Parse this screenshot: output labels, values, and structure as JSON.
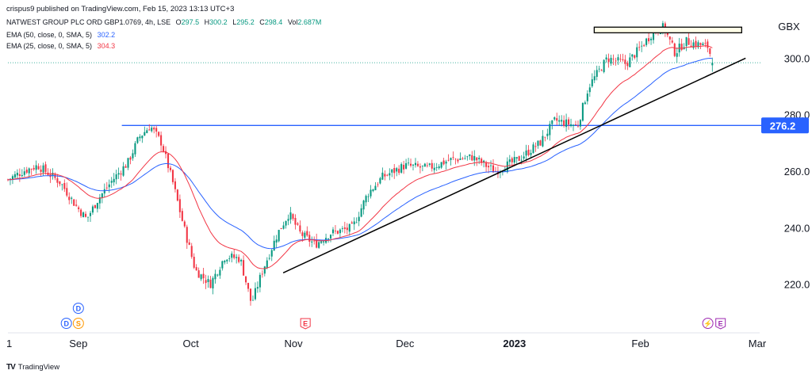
{
  "header": {
    "published": "crispus9 published on TradingView.com, Feb 15, 2023 13:13 UTC+3",
    "symbol": "NATWEST GROUP PLC ORD GBP1.0769, 4h, LSE",
    "ohlc": {
      "o_label": "O",
      "o": "297.5",
      "h_label": "H",
      "h": "300.2",
      "l_label": "L",
      "l": "295.2",
      "c_label": "C",
      "c": "298.4",
      "vol_label": "Vol",
      "vol": "2.687M"
    },
    "ema50_label": "EMA (50, close, 0, SMA, 5)",
    "ema50_value": "302.2",
    "ema25_label": "EMA (25, close, 0, SMA, 5)",
    "ema25_value": "304.3"
  },
  "footer": {
    "brand": "TradingView",
    "logo": "TV"
  },
  "colors": {
    "up": "#089981",
    "down": "#f23645",
    "ema50": "#2962ff",
    "ema25": "#f23645",
    "hline": "#2962ff",
    "trend": "#000000",
    "dotted": "#089981"
  },
  "chart_data": {
    "type": "candlestick",
    "currency": "GBX",
    "ylim": [
      205,
      315
    ],
    "y_ticks": [
      "220.0",
      "240.0",
      "260.0",
      "280.0",
      "300.0"
    ],
    "y_tick_values": [
      220,
      240,
      260,
      280,
      300
    ],
    "x_labels": [
      {
        "label": "1",
        "bold": false
      },
      {
        "label": "Sep",
        "bold": false
      },
      {
        "label": "Oct",
        "bold": false
      },
      {
        "label": "Nov",
        "bold": false
      },
      {
        "label": "Dec",
        "bold": false
      },
      {
        "label": "2023",
        "bold": true
      },
      {
        "label": "Feb",
        "bold": false
      },
      {
        "label": "Mar",
        "bold": false
      }
    ],
    "x_label_pos": [
      0,
      0.094,
      0.244,
      0.381,
      0.53,
      0.676,
      0.844,
      1.0
    ],
    "horizontal_line": {
      "value": 276.2,
      "label": "276.2"
    },
    "last_price": 298.4,
    "trendline": {
      "start": {
        "date": "Oct 28",
        "price": 224
      },
      "end": {
        "date": "Feb 28",
        "price": 300
      }
    },
    "resistance_box": {
      "from": "Jan 20",
      "to": "Feb 27",
      "low": 309,
      "high": 311
    },
    "anchors": [
      {
        "t": 0.0,
        "p": 257
      },
      {
        "t": 0.02,
        "p": 260
      },
      {
        "t": 0.04,
        "p": 262
      },
      {
        "t": 0.055,
        "p": 259
      },
      {
        "t": 0.07,
        "p": 256
      },
      {
        "t": 0.09,
        "p": 248
      },
      {
        "t": 0.105,
        "p": 243
      },
      {
        "t": 0.12,
        "p": 250
      },
      {
        "t": 0.14,
        "p": 257
      },
      {
        "t": 0.16,
        "p": 263
      },
      {
        "t": 0.175,
        "p": 272
      },
      {
        "t": 0.19,
        "p": 276
      },
      {
        "t": 0.205,
        "p": 270
      },
      {
        "t": 0.22,
        "p": 256
      },
      {
        "t": 0.235,
        "p": 240
      },
      {
        "t": 0.25,
        "p": 225
      },
      {
        "t": 0.27,
        "p": 220
      },
      {
        "t": 0.29,
        "p": 230
      },
      {
        "t": 0.31,
        "p": 229
      },
      {
        "t": 0.325,
        "p": 213
      },
      {
        "t": 0.34,
        "p": 225
      },
      {
        "t": 0.36,
        "p": 238
      },
      {
        "t": 0.375,
        "p": 245
      },
      {
        "t": 0.39,
        "p": 238
      },
      {
        "t": 0.41,
        "p": 234
      },
      {
        "t": 0.43,
        "p": 238
      },
      {
        "t": 0.46,
        "p": 240
      },
      {
        "t": 0.48,
        "p": 252
      },
      {
        "t": 0.5,
        "p": 258
      },
      {
        "t": 0.53,
        "p": 262
      },
      {
        "t": 0.56,
        "p": 261
      },
      {
        "t": 0.59,
        "p": 264
      },
      {
        "t": 0.62,
        "p": 265
      },
      {
        "t": 0.65,
        "p": 260
      },
      {
        "t": 0.68,
        "p": 264
      },
      {
        "t": 0.71,
        "p": 270
      },
      {
        "t": 0.73,
        "p": 278
      },
      {
        "t": 0.76,
        "p": 276
      },
      {
        "t": 0.775,
        "p": 290
      },
      {
        "t": 0.8,
        "p": 300
      },
      {
        "t": 0.825,
        "p": 298
      },
      {
        "t": 0.845,
        "p": 304
      },
      {
        "t": 0.86,
        "p": 309
      },
      {
        "t": 0.875,
        "p": 311
      },
      {
        "t": 0.89,
        "p": 302
      },
      {
        "t": 0.905,
        "p": 306
      },
      {
        "t": 0.92,
        "p": 305
      },
      {
        "t": 0.935,
        "p": 304
      },
      {
        "t": 0.94,
        "p": 298
      }
    ],
    "events": [
      {
        "label": "D",
        "row": 1,
        "t": 0.094,
        "color": "#2962ff"
      },
      {
        "label": "D",
        "row": 2,
        "t": 0.078,
        "color": "#2962ff"
      },
      {
        "label": "S",
        "row": 2,
        "t": 0.094,
        "color": "#ff9800"
      },
      {
        "label": "E",
        "row": 2,
        "t": 0.397,
        "color": "#f23645"
      },
      {
        "label": "⚡",
        "row": 2,
        "t": 0.934,
        "color": "#9c27b0"
      },
      {
        "label": "E",
        "row": 2,
        "t": 0.951,
        "color": "#9c27b0"
      }
    ]
  }
}
